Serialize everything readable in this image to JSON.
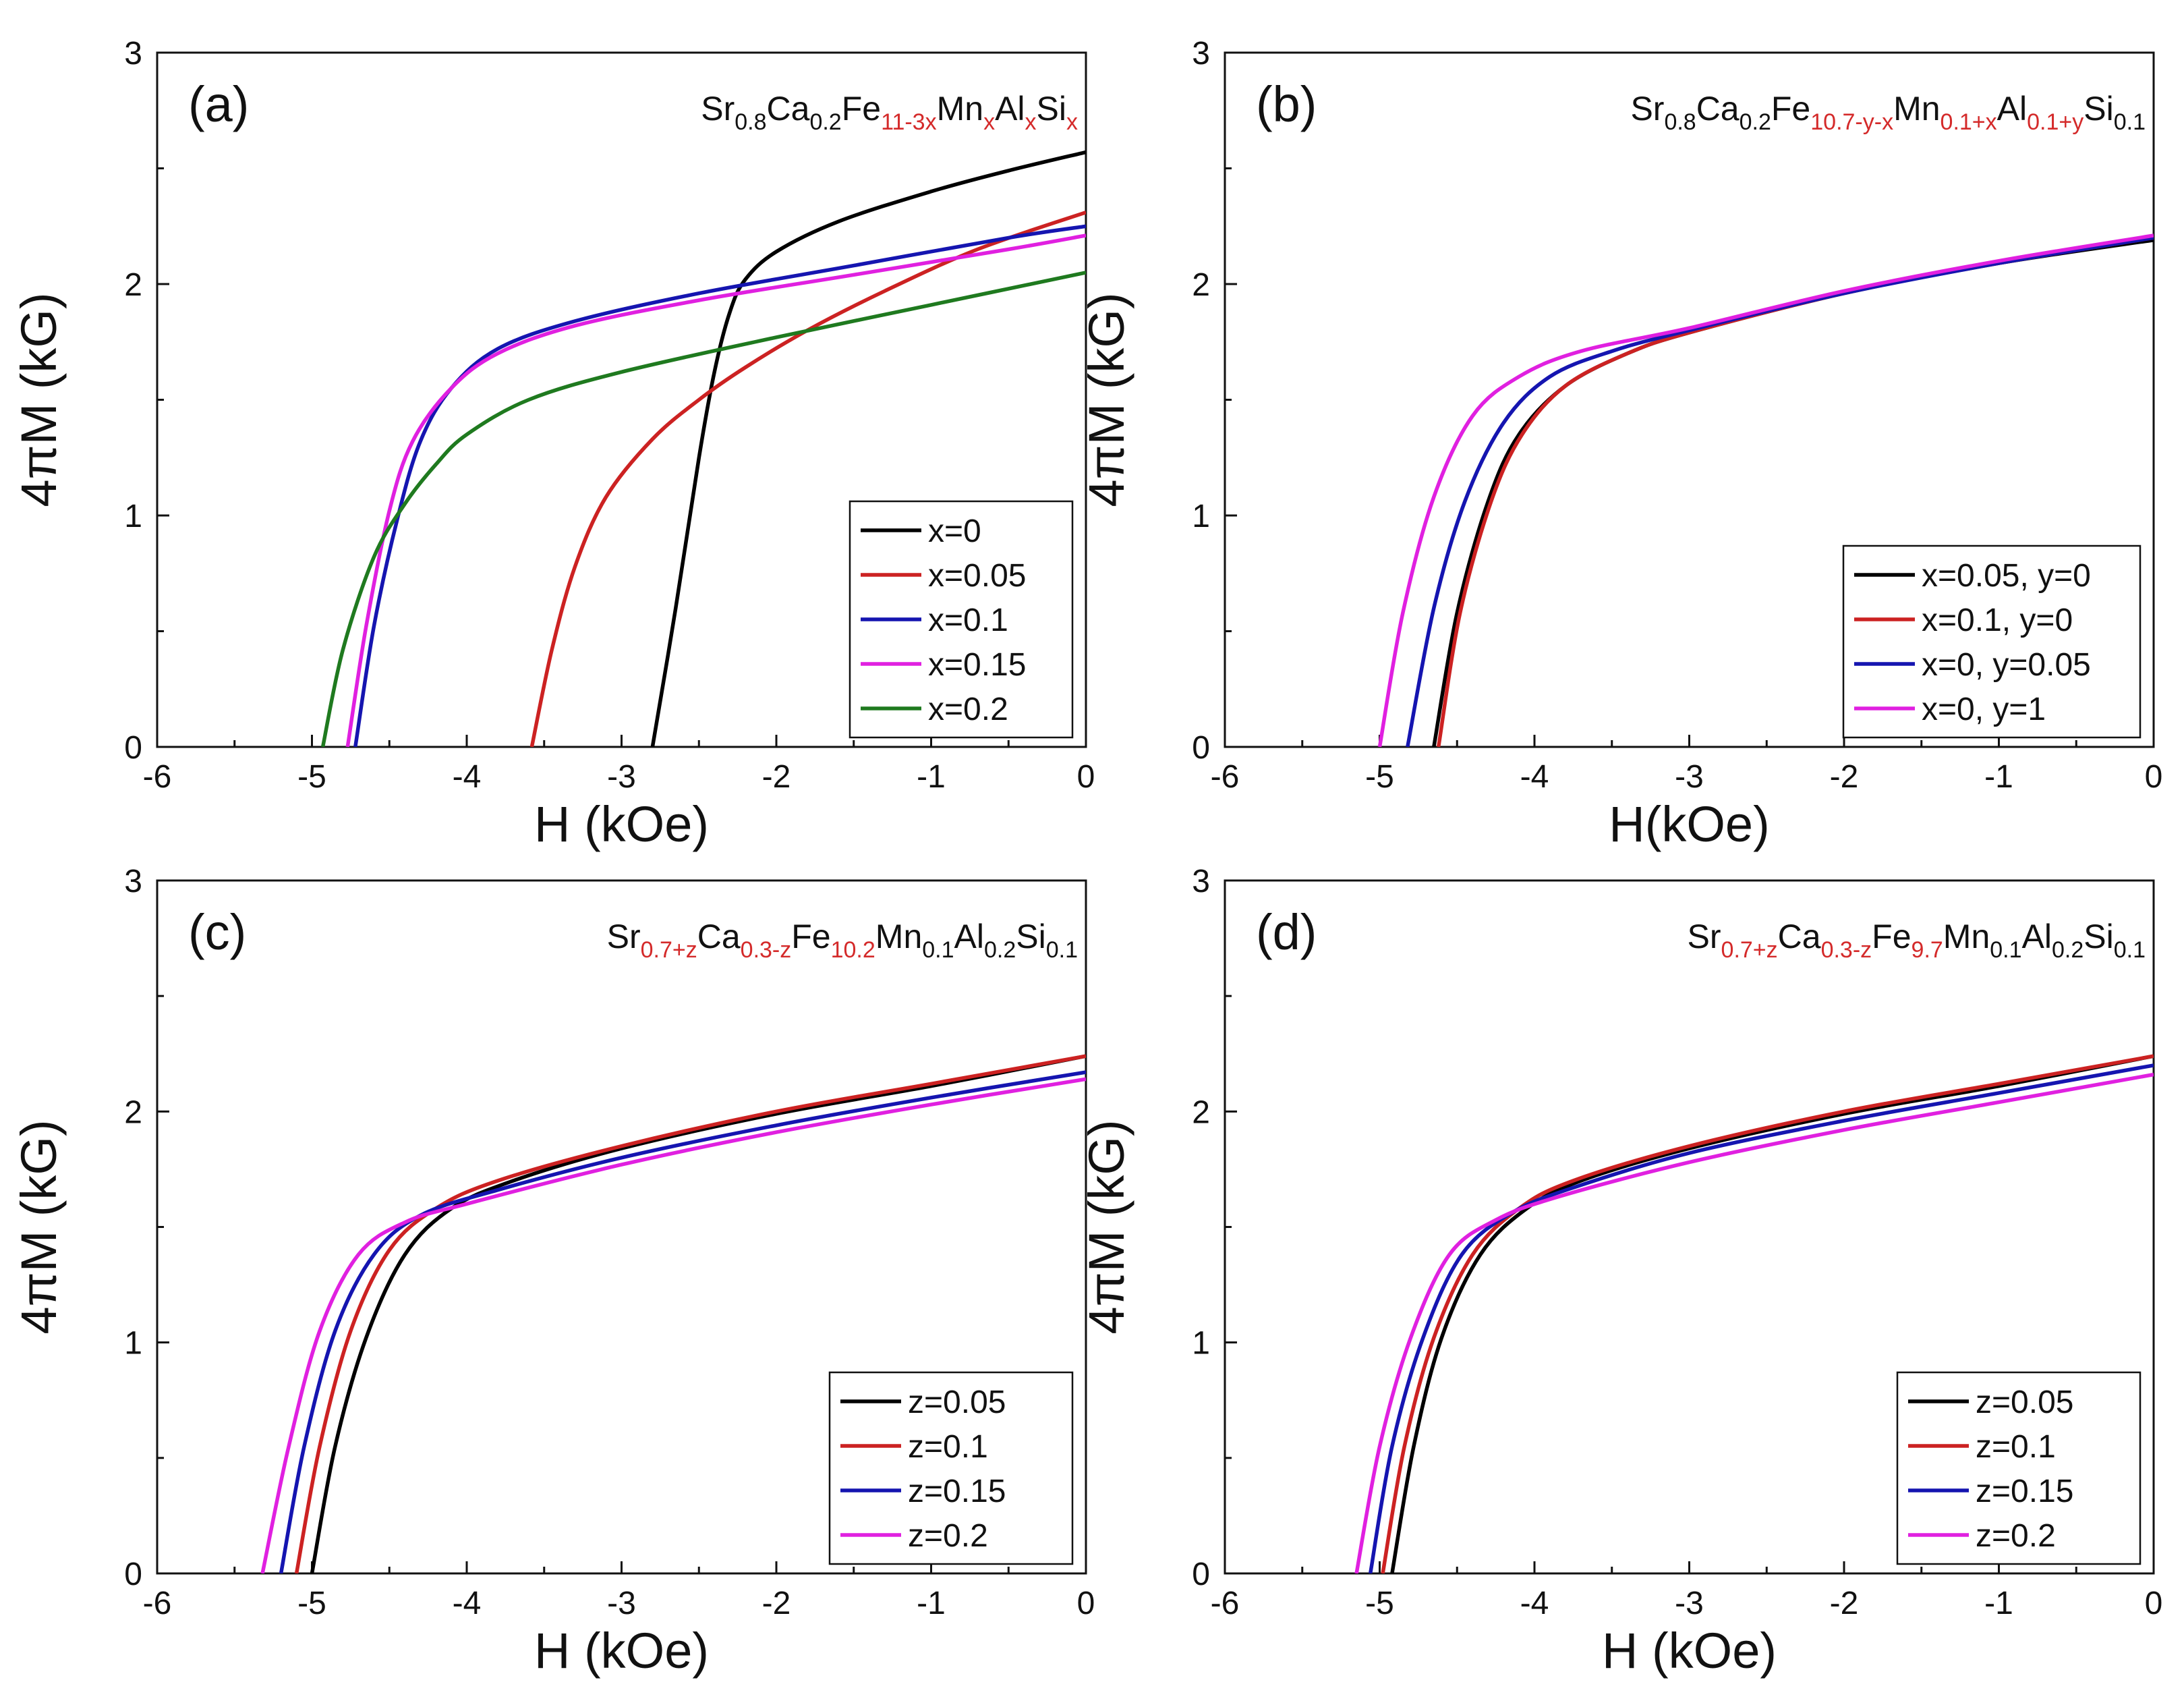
{
  "colors": {
    "black": "#000000",
    "red": "#cc2222",
    "blue": "#1515b0",
    "magenta": "#e020e0",
    "green": "#1f7a1f",
    "formula_highlight": "#d42a2a"
  },
  "chart_data": [
    {
      "type": "line",
      "panel": "(a)",
      "formula": [
        {
          "t": "Sr",
          "sub": "0.8",
          "red": false
        },
        {
          "t": "Ca",
          "sub": "0.2",
          "red": false
        },
        {
          "t": "Fe",
          "sub": "11-3x",
          "red": true
        },
        {
          "t": "Mn",
          "sub": "x",
          "red": true
        },
        {
          "t": "Al",
          "sub": "x",
          "red": true
        },
        {
          "t": "Si",
          "sub": "x",
          "red": true
        }
      ],
      "xlabel": "H (kOe)",
      "ylabel": "4πM (kG)",
      "xlim": [
        -6,
        0
      ],
      "ylim": [
        0,
        3
      ],
      "xticks": [
        "-6",
        "-5",
        "-4",
        "-3",
        "-2",
        "-1",
        "0"
      ],
      "yticks": [
        "0",
        "1",
        "2",
        "3"
      ],
      "legend_position": "bottom-right",
      "series": [
        {
          "name": "x=0",
          "color": "black",
          "x": [
            -2.8,
            -2.65,
            -2.5,
            -2.4,
            -2.3,
            -2.2,
            -2.0,
            -1.6,
            -1.0,
            -0.5,
            0
          ],
          "y": [
            0,
            0.6,
            1.25,
            1.62,
            1.88,
            2.02,
            2.14,
            2.27,
            2.4,
            2.49,
            2.57
          ]
        },
        {
          "name": "x=0.05",
          "color": "red",
          "x": [
            -3.58,
            -3.45,
            -3.3,
            -3.1,
            -2.8,
            -2.5,
            -2.2,
            -1.8,
            -1.3,
            -0.7,
            0
          ],
          "y": [
            0,
            0.42,
            0.78,
            1.08,
            1.33,
            1.5,
            1.64,
            1.8,
            1.97,
            2.15,
            2.31
          ]
        },
        {
          "name": "x=0.1",
          "color": "blue",
          "x": [
            -4.72,
            -4.6,
            -4.45,
            -4.3,
            -4.1,
            -3.8,
            -3.3,
            -2.5,
            -1.5,
            -0.5,
            0
          ],
          "y": [
            0,
            0.52,
            0.98,
            1.32,
            1.55,
            1.72,
            1.84,
            1.96,
            2.08,
            2.2,
            2.25
          ]
        },
        {
          "name": "x=0.15",
          "color": "magenta",
          "x": [
            -4.77,
            -4.65,
            -4.5,
            -4.35,
            -4.1,
            -3.8,
            -3.3,
            -2.5,
            -1.5,
            -0.5,
            0
          ],
          "y": [
            0,
            0.52,
            1.02,
            1.32,
            1.55,
            1.7,
            1.82,
            1.93,
            2.04,
            2.15,
            2.21
          ]
        },
        {
          "name": "x=0.2",
          "color": "green",
          "x": [
            -4.93,
            -4.8,
            -4.6,
            -4.4,
            -4.2,
            -4.0,
            -3.6,
            -3.0,
            -2.0,
            -1.0,
            0
          ],
          "y": [
            0,
            0.42,
            0.82,
            1.05,
            1.22,
            1.35,
            1.5,
            1.62,
            1.77,
            1.91,
            2.05
          ]
        }
      ]
    },
    {
      "type": "line",
      "panel": "(b)",
      "formula": [
        {
          "t": "Sr",
          "sub": "0.8",
          "red": false
        },
        {
          "t": "Ca",
          "sub": "0.2",
          "red": false
        },
        {
          "t": "Fe",
          "sub": "10.7-y-x",
          "red": true
        },
        {
          "t": "Mn",
          "sub": "0.1+x",
          "red": true
        },
        {
          "t": "Al",
          "sub": "0.1+y",
          "red": true
        },
        {
          "t": "Si",
          "sub": "0.1",
          "red": false
        }
      ],
      "xlabel": "H(kOe)",
      "ylabel": "4πM (kG)",
      "xlim": [
        -6,
        0
      ],
      "ylim": [
        0,
        3
      ],
      "xticks": [
        "-6",
        "-5",
        "-4",
        "-3",
        "-2",
        "-1",
        "0"
      ],
      "yticks": [
        "0",
        "1",
        "2",
        "3"
      ],
      "legend_position": "bottom-right",
      "series": [
        {
          "name": "x=0.05, y=0",
          "color": "black",
          "x": [
            -4.65,
            -4.5,
            -4.3,
            -4.1,
            -3.8,
            -3.4,
            -3.0,
            -2.0,
            -1.0,
            0
          ],
          "y": [
            0,
            0.58,
            1.06,
            1.35,
            1.56,
            1.7,
            1.79,
            1.96,
            2.09,
            2.19
          ]
        },
        {
          "name": "x=0.1, y=0",
          "color": "red",
          "x": [
            -4.62,
            -4.48,
            -4.28,
            -4.08,
            -3.8,
            -3.4,
            -3.0,
            -2.0,
            -1.0,
            0
          ],
          "y": [
            0,
            0.58,
            1.06,
            1.35,
            1.56,
            1.7,
            1.79,
            1.96,
            2.09,
            2.2
          ]
        },
        {
          "name": "x=0, y=0.05",
          "color": "blue",
          "x": [
            -4.82,
            -4.65,
            -4.45,
            -4.2,
            -3.9,
            -3.5,
            -3.0,
            -2.0,
            -1.0,
            0
          ],
          "y": [
            0,
            0.6,
            1.06,
            1.4,
            1.6,
            1.71,
            1.8,
            1.96,
            2.09,
            2.2
          ]
        },
        {
          "name": "x=0, y=1",
          "color": "magenta",
          "x": [
            -5.0,
            -4.85,
            -4.65,
            -4.4,
            -4.1,
            -3.7,
            -3.0,
            -2.0,
            -1.0,
            0
          ],
          "y": [
            0,
            0.58,
            1.08,
            1.43,
            1.6,
            1.71,
            1.81,
            1.97,
            2.1,
            2.21
          ]
        }
      ]
    },
    {
      "type": "line",
      "panel": "(c)",
      "formula": [
        {
          "t": "Sr",
          "sub": "0.7+z",
          "red": true
        },
        {
          "t": "Ca",
          "sub": "0.3-z",
          "red": true
        },
        {
          "t": "Fe",
          "sub": "10.2",
          "red": true
        },
        {
          "t": "Mn",
          "sub": "0.1",
          "red": false
        },
        {
          "t": "Al",
          "sub": "0.2",
          "red": false
        },
        {
          "t": "Si",
          "sub": "0.1",
          "red": false
        }
      ],
      "xlabel": "H (kOe)",
      "ylabel": "4πM (kG)",
      "xlim": [
        -6,
        0
      ],
      "ylim": [
        0,
        3
      ],
      "xticks": [
        "-6",
        "-5",
        "-4",
        "-3",
        "-2",
        "-1",
        "0"
      ],
      "yticks": [
        "0",
        "1",
        "2",
        "3"
      ],
      "legend_position": "bottom-right",
      "series": [
        {
          "name": "z=0.05",
          "color": "black",
          "x": [
            -5.0,
            -4.85,
            -4.65,
            -4.4,
            -4.1,
            -3.7,
            -3.0,
            -2.0,
            -1.0,
            0
          ],
          "y": [
            0,
            0.55,
            1.02,
            1.38,
            1.58,
            1.7,
            1.84,
            1.99,
            2.11,
            2.24
          ]
        },
        {
          "name": "z=0.1",
          "color": "red",
          "x": [
            -5.1,
            -4.95,
            -4.75,
            -4.5,
            -4.2,
            -3.8,
            -3.0,
            -2.0,
            -1.0,
            0
          ],
          "y": [
            0,
            0.55,
            1.05,
            1.4,
            1.58,
            1.7,
            1.85,
            2.0,
            2.12,
            2.24
          ]
        },
        {
          "name": "z=0.15",
          "color": "blue",
          "x": [
            -5.2,
            -5.05,
            -4.85,
            -4.6,
            -4.3,
            -3.8,
            -3.0,
            -2.0,
            -1.0,
            0
          ],
          "y": [
            0,
            0.55,
            1.05,
            1.38,
            1.55,
            1.66,
            1.8,
            1.94,
            2.06,
            2.17
          ]
        },
        {
          "name": "z=0.2",
          "color": "magenta",
          "x": [
            -5.32,
            -5.15,
            -4.95,
            -4.7,
            -4.4,
            -4.0,
            -3.0,
            -2.0,
            -1.0,
            0
          ],
          "y": [
            0,
            0.55,
            1.05,
            1.38,
            1.52,
            1.6,
            1.77,
            1.91,
            2.03,
            2.14
          ]
        }
      ]
    },
    {
      "type": "line",
      "panel": "(d)",
      "formula": [
        {
          "t": "Sr",
          "sub": "0.7+z",
          "red": true
        },
        {
          "t": "Ca",
          "sub": "0.3-z",
          "red": true
        },
        {
          "t": "Fe",
          "sub": "9.7",
          "red": true
        },
        {
          "t": "Mn",
          "sub": "0.1",
          "red": false
        },
        {
          "t": "Al",
          "sub": "0.2",
          "red": false
        },
        {
          "t": "Si",
          "sub": "0.1",
          "red": false
        }
      ],
      "xlabel": "H (kOe)",
      "ylabel": "4πM (kG)",
      "xlim": [
        -6,
        0
      ],
      "ylim": [
        0,
        3
      ],
      "xticks": [
        "-6",
        "-5",
        "-4",
        "-3",
        "-2",
        "-1",
        "0"
      ],
      "yticks": [
        "0",
        "1",
        "2",
        "3"
      ],
      "legend_position": "bottom-right",
      "series": [
        {
          "name": "z=0.05",
          "color": "black",
          "x": [
            -4.92,
            -4.78,
            -4.6,
            -4.35,
            -4.05,
            -3.7,
            -3.0,
            -2.0,
            -1.0,
            0
          ],
          "y": [
            0,
            0.55,
            1.02,
            1.38,
            1.58,
            1.7,
            1.84,
            1.99,
            2.11,
            2.24
          ]
        },
        {
          "name": "z=0.1",
          "color": "red",
          "x": [
            -4.98,
            -4.84,
            -4.65,
            -4.4,
            -4.1,
            -3.75,
            -3.0,
            -2.0,
            -1.0,
            0
          ],
          "y": [
            0,
            0.55,
            1.02,
            1.38,
            1.58,
            1.7,
            1.85,
            2.0,
            2.12,
            2.24
          ]
        },
        {
          "name": "z=0.15",
          "color": "blue",
          "x": [
            -5.06,
            -4.92,
            -4.72,
            -4.47,
            -4.15,
            -3.75,
            -3.0,
            -2.0,
            -1.0,
            0
          ],
          "y": [
            0,
            0.55,
            1.02,
            1.38,
            1.56,
            1.67,
            1.82,
            1.96,
            2.08,
            2.2
          ]
        },
        {
          "name": "z=0.2",
          "color": "magenta",
          "x": [
            -5.15,
            -5.0,
            -4.8,
            -4.55,
            -4.25,
            -3.85,
            -3.0,
            -2.0,
            -1.0,
            0
          ],
          "y": [
            0,
            0.55,
            1.02,
            1.38,
            1.53,
            1.63,
            1.78,
            1.92,
            2.04,
            2.16
          ]
        }
      ]
    }
  ]
}
